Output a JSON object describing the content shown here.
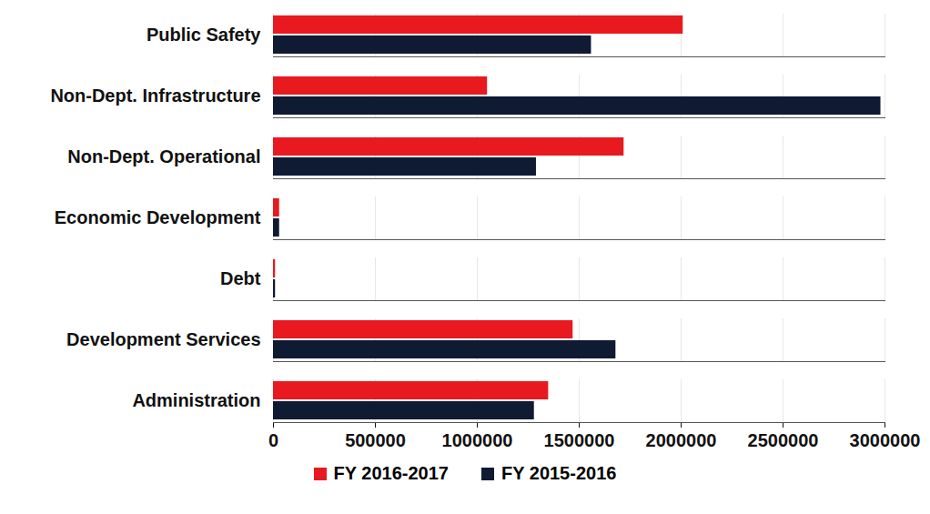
{
  "chart_data": {
    "type": "bar",
    "orientation": "horizontal",
    "categories": [
      "Public Safety",
      "Non-Dept. Infrastructure",
      "Non-Dept. Operational",
      "Economic Development",
      "Debt",
      "Development Services",
      "Administration"
    ],
    "series": [
      {
        "name": "FY 2016-2017",
        "color": "#e8191f",
        "values": [
          2010000,
          1050000,
          1720000,
          30000,
          10000,
          1470000,
          1350000
        ]
      },
      {
        "name": "FY 2015-2016",
        "color": "#0f1a33",
        "values": [
          1560000,
          2980000,
          1290000,
          30000,
          10000,
          1680000,
          1280000
        ]
      }
    ],
    "xlim": [
      0,
      3000000
    ],
    "xticks": [
      0,
      500000,
      1000000,
      1500000,
      2000000,
      2500000,
      3000000
    ],
    "grid": true,
    "legend": "bottom"
  }
}
